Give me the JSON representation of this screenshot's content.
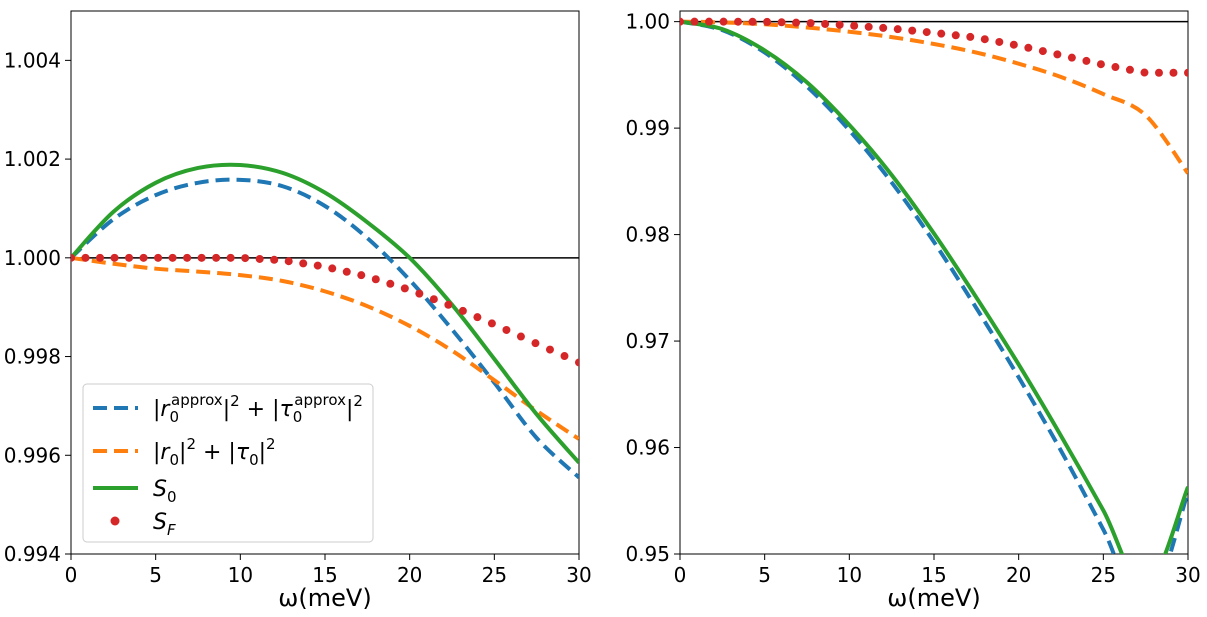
{
  "chart_data": [
    {
      "type": "line",
      "panel": "left",
      "xlabel": "ω(meV)",
      "ylabel": "",
      "xlim": [
        0,
        30
      ],
      "ylim": [
        0.994,
        1.005
      ],
      "xticks": [
        "0",
        "5",
        "10",
        "15",
        "20",
        "25",
        "30"
      ],
      "yticks": [
        "0.994",
        "0.996",
        "0.998",
        "1.000",
        "1.002",
        "1.004"
      ],
      "reference_line": 1.0,
      "grid": false,
      "legend_position": "lower-left",
      "series": [
        {
          "name": "|r0approx|² + |τ0approx|²",
          "style": "dashed",
          "color": "#1f77b4",
          "x": [
            0,
            2.5,
            5,
            7.5,
            10,
            12.5,
            15,
            17.5,
            20,
            22.5,
            25,
            27.5,
            30
          ],
          "y": [
            1.0,
            1.00078,
            1.00127,
            1.00152,
            1.00158,
            1.00145,
            1.00105,
            1.0004,
            0.99955,
            0.99855,
            0.99747,
            0.99635,
            0.99555
          ]
        },
        {
          "name": "|r0|² + |τ0|²",
          "style": "dashed",
          "color": "#ff7f0e",
          "x": [
            0,
            2.5,
            5,
            7.5,
            10,
            12.5,
            15,
            17.5,
            20,
            22.5,
            25,
            27.5,
            30
          ],
          "y": [
            1.0,
            0.99988,
            0.99978,
            0.99972,
            0.99965,
            0.99953,
            0.99932,
            0.99902,
            0.99862,
            0.99812,
            0.99752,
            0.9969,
            0.99633
          ]
        },
        {
          "name": "S0",
          "style": "solid",
          "color": "#2ca02c",
          "x": [
            0,
            2.5,
            5,
            7.5,
            10,
            12.5,
            15,
            17.5,
            20,
            22.5,
            25,
            27.5,
            30
          ],
          "y": [
            1.0,
            1.00093,
            1.00152,
            1.00182,
            1.00188,
            1.00172,
            1.00132,
            1.00072,
            1.0,
            0.99905,
            0.99795,
            0.99683,
            0.99585
          ]
        },
        {
          "name": "SF",
          "style": "dotted",
          "color": "#d62728",
          "x": [
            0,
            2.5,
            5,
            7.5,
            10,
            12.5,
            15,
            17.5,
            20,
            22.5,
            25,
            27.5,
            30
          ],
          "y": [
            1.0,
            1.0,
            1.0,
            1.0,
            1.0,
            0.99995,
            0.99982,
            0.99962,
            0.99935,
            0.99902,
            0.99865,
            0.99826,
            0.99788
          ]
        }
      ]
    },
    {
      "type": "line",
      "panel": "right",
      "xlabel": "ω(meV)",
      "ylabel": "",
      "xlim": [
        0,
        30
      ],
      "ylim": [
        0.95,
        1.001
      ],
      "xticks": [
        "0",
        "5",
        "10",
        "15",
        "20",
        "25",
        "30"
      ],
      "yticks": [
        "0.95",
        "0.96",
        "0.97",
        "0.98",
        "0.99",
        "1.00"
      ],
      "reference_line": 1.0,
      "grid": false,
      "series": [
        {
          "name": "|r0approx|² + |τ0approx|²",
          "style": "dashed",
          "color": "#1f77b4",
          "x": [
            0,
            2.5,
            5,
            7.5,
            10,
            12.5,
            15,
            17.5,
            20,
            22.5,
            25,
            27.5,
            30
          ],
          "y": [
            1.0,
            0.9992,
            0.9971,
            0.9939,
            0.9898,
            0.9849,
            0.9793,
            0.9731,
            0.9666,
            0.9597,
            0.9523,
            0.9447,
            0.9558
          ]
        },
        {
          "name": "|r0|² + |τ0|²",
          "style": "dashed",
          "color": "#ff7f0e",
          "x": [
            0,
            2.5,
            5,
            7.5,
            10,
            12.5,
            15,
            17.5,
            20,
            22.5,
            25,
            27.5,
            30
          ],
          "y": [
            1.0,
            0.99993,
            0.99975,
            0.99945,
            0.99905,
            0.99855,
            0.9979,
            0.9971,
            0.99605,
            0.9948,
            0.9932,
            0.9912,
            0.98575
          ]
        },
        {
          "name": "S0",
          "style": "solid",
          "color": "#2ca02c",
          "x": [
            0,
            2.5,
            5,
            7.5,
            10,
            12.5,
            15,
            17.5,
            20,
            22.5,
            25,
            27.5,
            30
          ],
          "y": [
            1.0,
            0.9993,
            0.9973,
            0.9943,
            0.9903,
            0.9856,
            0.9801,
            0.9741,
            0.9678,
            0.9611,
            0.9541,
            0.9468,
            0.9563
          ]
        },
        {
          "name": "SF",
          "style": "dotted",
          "color": "#d62728",
          "x": [
            0,
            2.5,
            5,
            7.5,
            10,
            12.5,
            15,
            17.5,
            20,
            22.5,
            25,
            27.5,
            30
          ],
          "y": [
            1.0,
            1.0,
            0.99998,
            0.99988,
            0.99965,
            0.99935,
            0.99895,
            0.9985,
            0.99775,
            0.99685,
            0.99595,
            0.9952,
            0.9952
          ]
        }
      ]
    }
  ]
}
